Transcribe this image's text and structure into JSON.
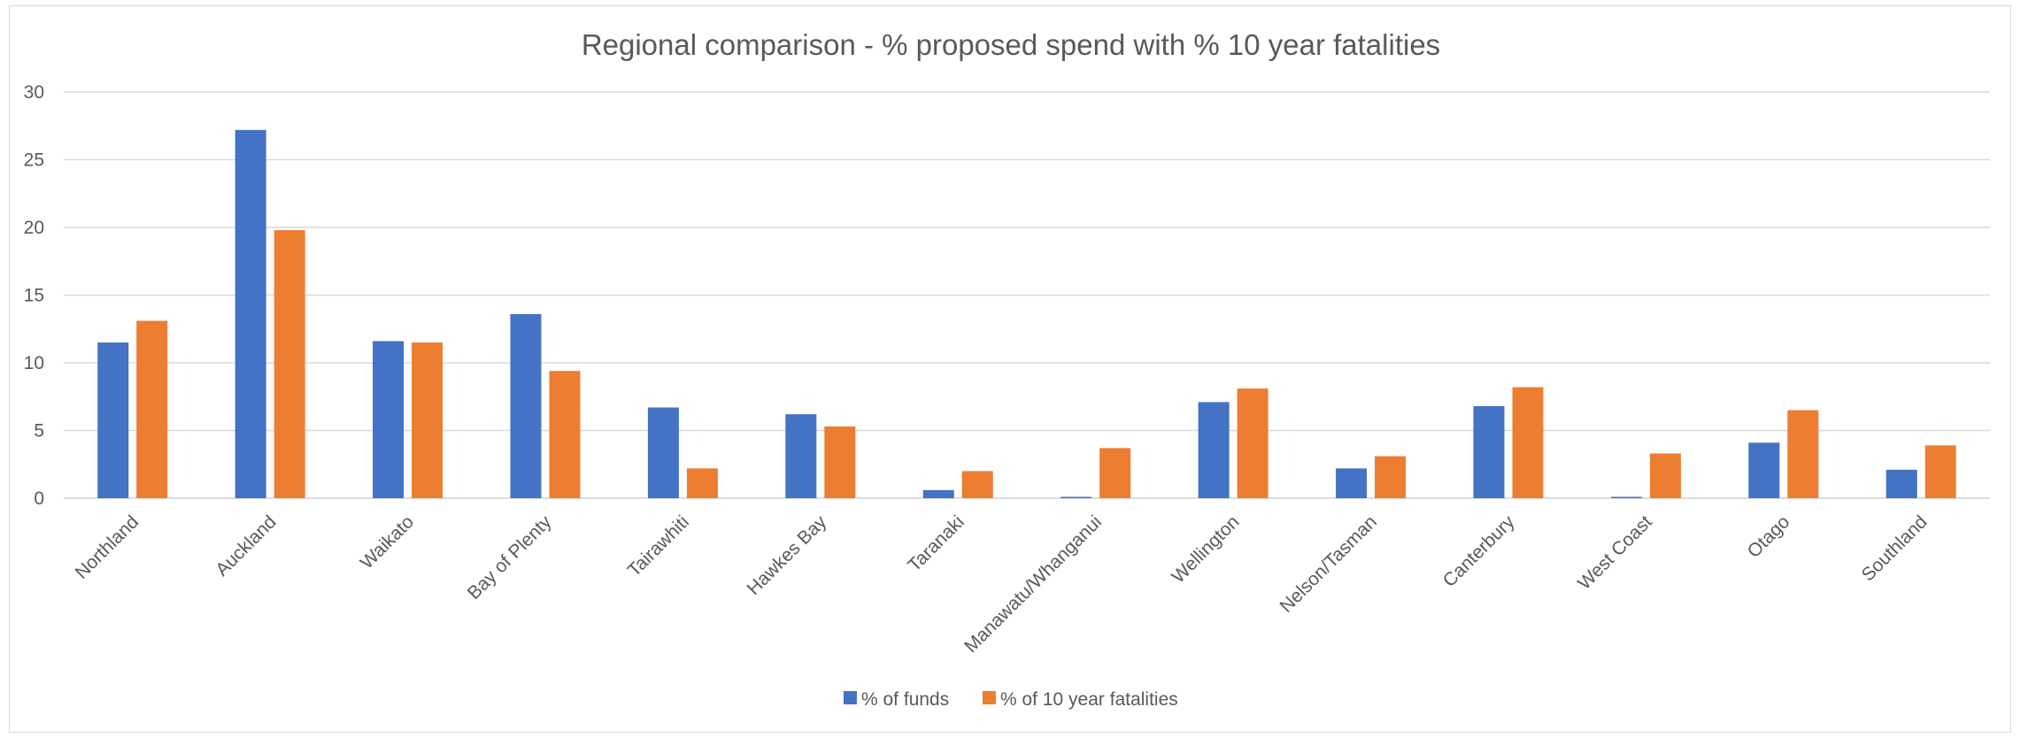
{
  "chart_data": {
    "type": "bar",
    "title": "Regional comparison - % proposed spend with % 10 year fatalities",
    "xlabel": "",
    "ylabel": "",
    "ylim": [
      0,
      30
    ],
    "yticks": [
      0,
      5,
      10,
      15,
      20,
      25,
      30
    ],
    "grid": true,
    "legend": "bottom",
    "categories": [
      "Northland",
      "Auckland",
      "Waikato",
      "Bay of Plenty",
      "Tairawhiti",
      "Hawkes Bay",
      "Taranaki",
      "Manawatu/Whanganui",
      "Wellington",
      "Nelson/Tasman",
      "Canterbury",
      "West Coast",
      "Otago",
      "Southland"
    ],
    "series": [
      {
        "name": "% of funds",
        "color": "#4472c4",
        "values": [
          11.5,
          27.2,
          11.6,
          13.6,
          6.7,
          6.2,
          0.6,
          0.1,
          7.1,
          2.2,
          6.8,
          0.1,
          4.1,
          2.1
        ]
      },
      {
        "name": "% of 10 year fatalities",
        "color": "#ed7d31",
        "values": [
          13.1,
          19.8,
          11.5,
          9.4,
          2.2,
          5.3,
          2.0,
          3.7,
          8.1,
          3.1,
          8.2,
          3.3,
          6.5,
          3.9
        ]
      }
    ]
  }
}
